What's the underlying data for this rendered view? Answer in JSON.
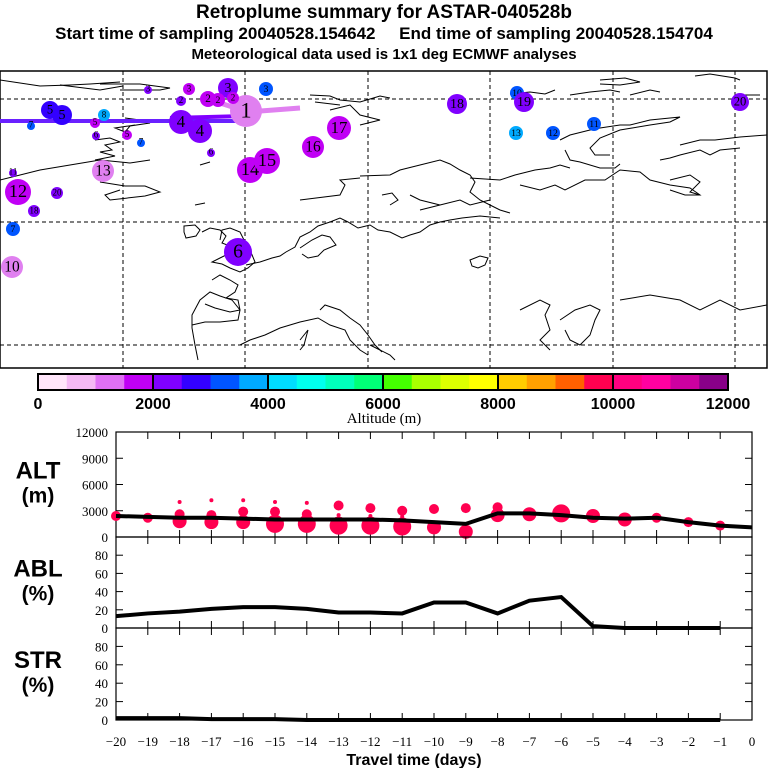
{
  "header": {
    "title": "Retroplume summary for ASTAR-040528b",
    "sampling": "Start time of sampling 20040528.154642     End time of sampling 20040528.154704",
    "met": "Meteorological data used is 1x1 deg ECMWF analyses"
  },
  "colorbar": {
    "label": "Altitude (m)",
    "ticks": [
      "0",
      "2000",
      "4000",
      "6000",
      "8000",
      "10000",
      "12000"
    ],
    "colors": [
      "#ffe6fa",
      "#f5b9f5",
      "#e070f5",
      "#c000f5",
      "#8000ff",
      "#3300ff",
      "#0055ff",
      "#00aaff",
      "#00ddff",
      "#00ffee",
      "#00ffbb",
      "#00ff77",
      "#44ff00",
      "#aaff00",
      "#ddff00",
      "#ffff00",
      "#ffcc00",
      "#ffa000",
      "#ff6000",
      "#ff0050",
      "#ff0080",
      "#ff00a0",
      "#cc00a0",
      "#880088"
    ],
    "range": [
      0,
      12000
    ]
  },
  "map": {
    "trajectory_color": "#6a20ff",
    "recent_trajectory_color": "#e080f0",
    "clusters": [
      {
        "label": "1",
        "color": "#e080f0"
      },
      {
        "label": "2",
        "color": "#c000f5"
      },
      {
        "label": "3",
        "color": "#8000ff"
      },
      {
        "label": "3",
        "color": "#0055ff"
      },
      {
        "label": "4",
        "color": "#8000ff"
      },
      {
        "label": "5",
        "color": "#3300ff"
      },
      {
        "label": "6",
        "color": "#8000ff"
      },
      {
        "label": "7",
        "color": "#0055ff"
      },
      {
        "label": "8",
        "color": "#00aaff"
      },
      {
        "label": "10",
        "color": "#0055ff"
      },
      {
        "label": "10",
        "color": "#e080f0"
      },
      {
        "label": "11",
        "color": "#0055ff"
      },
      {
        "label": "12",
        "color": "#c000f5"
      },
      {
        "label": "12",
        "color": "#0055ff"
      },
      {
        "label": "13",
        "color": "#e080f0"
      },
      {
        "label": "13",
        "color": "#00aaff"
      },
      {
        "label": "14",
        "color": "#c000f5"
      },
      {
        "label": "15",
        "color": "#c000f5"
      },
      {
        "label": "16",
        "color": "#c000f5"
      },
      {
        "label": "17",
        "color": "#c000f5"
      },
      {
        "label": "18",
        "color": "#8000ff"
      },
      {
        "label": "19",
        "color": "#8000ff"
      },
      {
        "label": "20",
        "color": "#8000ff"
      }
    ]
  },
  "chart_data": [
    {
      "type": "scatter",
      "name": "ALT",
      "ylabel": "ALT\n(m)",
      "xlabel": "",
      "ylim": [
        0,
        12000
      ],
      "yticks": [
        "0",
        "3000",
        "6000",
        "9000",
        "12000"
      ],
      "xlim": [
        -20,
        0
      ],
      "mean_line": {
        "x": [
          -20,
          -19,
          -18,
          -17,
          -16,
          -15,
          -14,
          -13,
          -12,
          -11,
          -10,
          -9,
          -8,
          -7,
          -6,
          -5,
          -4,
          -3,
          -2,
          -1,
          0
        ],
        "y": [
          2400,
          2300,
          2200,
          2200,
          2100,
          2000,
          2000,
          2000,
          2000,
          1900,
          1700,
          1500,
          2700,
          2700,
          2500,
          2200,
          2100,
          2200,
          1700,
          1300,
          1100
        ]
      },
      "cluster_points": [
        {
          "x": -20,
          "y": 2400,
          "size": 2
        },
        {
          "x": -19,
          "y": 2200,
          "size": 2
        },
        {
          "x": -18,
          "y": 2600,
          "size": 2
        },
        {
          "x": -18,
          "y": 4000,
          "size": 1
        },
        {
          "x": -18,
          "y": 1800,
          "size": 3
        },
        {
          "x": -17,
          "y": 2500,
          "size": 2
        },
        {
          "x": -17,
          "y": 4200,
          "size": 1
        },
        {
          "x": -17,
          "y": 1700,
          "size": 3
        },
        {
          "x": -16,
          "y": 2900,
          "size": 2
        },
        {
          "x": -16,
          "y": 4200,
          "size": 1
        },
        {
          "x": -16,
          "y": 1700,
          "size": 3
        },
        {
          "x": -15,
          "y": 2900,
          "size": 2
        },
        {
          "x": -15,
          "y": 4000,
          "size": 1
        },
        {
          "x": -15,
          "y": 1500,
          "size": 4
        },
        {
          "x": -14,
          "y": 2600,
          "size": 2
        },
        {
          "x": -14,
          "y": 3900,
          "size": 1
        },
        {
          "x": -14,
          "y": 1500,
          "size": 4
        },
        {
          "x": -13,
          "y": 3600,
          "size": 2
        },
        {
          "x": -13,
          "y": 2500,
          "size": 1
        },
        {
          "x": -13,
          "y": 1300,
          "size": 4
        },
        {
          "x": -12,
          "y": 3300,
          "size": 2
        },
        {
          "x": -12,
          "y": 2400,
          "size": 1
        },
        {
          "x": -12,
          "y": 1300,
          "size": 4
        },
        {
          "x": -11,
          "y": 3000,
          "size": 2
        },
        {
          "x": -11,
          "y": 2300,
          "size": 1
        },
        {
          "x": -11,
          "y": 1200,
          "size": 4
        },
        {
          "x": -10,
          "y": 3200,
          "size": 2
        },
        {
          "x": -10,
          "y": 1100,
          "size": 3
        },
        {
          "x": -9,
          "y": 3300,
          "size": 2
        },
        {
          "x": -9,
          "y": 600,
          "size": 3
        },
        {
          "x": -8,
          "y": 3400,
          "size": 2
        },
        {
          "x": -8,
          "y": 2500,
          "size": 3
        },
        {
          "x": -7,
          "y": 2600,
          "size": 3
        },
        {
          "x": -6,
          "y": 2700,
          "size": 4
        },
        {
          "x": -5,
          "y": 2400,
          "size": 3
        },
        {
          "x": -4,
          "y": 2000,
          "size": 3
        },
        {
          "x": -3,
          "y": 2200,
          "size": 2
        },
        {
          "x": -2,
          "y": 1700,
          "size": 2
        },
        {
          "x": -1,
          "y": 1300,
          "size": 2
        }
      ],
      "point_color": "#ff0050"
    },
    {
      "type": "line",
      "name": "ABL",
      "ylabel": "ABL\n(%)",
      "ylim": [
        0,
        100
      ],
      "yticks": [
        "0",
        "20",
        "40",
        "60",
        "80"
      ],
      "xlim": [
        -20,
        0
      ],
      "x": [
        -20,
        -19,
        -18,
        -17,
        -16,
        -15,
        -14,
        -13,
        -12,
        -11,
        -10,
        -9,
        -8,
        -7,
        -6,
        -5,
        -4,
        -3,
        -2,
        -1
      ],
      "y": [
        13,
        16,
        18,
        21,
        23,
        23,
        21,
        17,
        17,
        16,
        28,
        28,
        16,
        30,
        34,
        2,
        0,
        0,
        0,
        0
      ]
    },
    {
      "type": "line",
      "name": "STR",
      "ylabel": "STR\n(%)",
      "ylim": [
        0,
        100
      ],
      "yticks": [
        "0",
        "20",
        "40",
        "60",
        "80"
      ],
      "xlim": [
        -20,
        0
      ],
      "x": [
        -20,
        -19,
        -18,
        -17,
        -16,
        -15,
        -14,
        -13,
        -12,
        -11,
        -10,
        -9,
        -8,
        -7,
        -6,
        -5,
        -4,
        -3,
        -2,
        -1
      ],
      "y": [
        2,
        2,
        2,
        1,
        1,
        1,
        0,
        0,
        0,
        0,
        0,
        0,
        0,
        0,
        0,
        0,
        0,
        0,
        0,
        0
      ],
      "xticks": [
        "-20",
        "-19",
        "-18",
        "-17",
        "-16",
        "-15",
        "-14",
        "-13",
        "-12",
        "-11",
        "-10",
        "-9",
        "-8",
        "-7",
        "-6",
        "-5",
        "-4",
        "-3",
        "-2",
        "-1",
        "0"
      ],
      "xlabel": "Travel time (days)"
    }
  ]
}
